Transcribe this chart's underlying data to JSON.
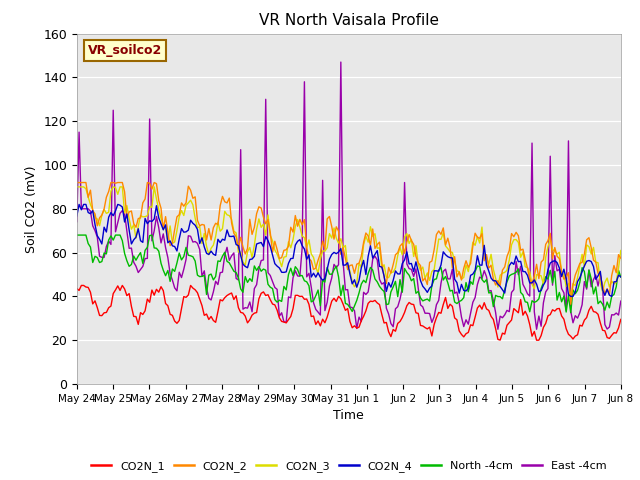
{
  "title": "VR North Vaisala Profile",
  "ylabel": "Soil CO2 (mV)",
  "xlabel": "Time",
  "annotation": "VR_soilco2",
  "ylim": [
    0,
    160
  ],
  "yticks": [
    0,
    20,
    40,
    60,
    80,
    100,
    120,
    140,
    160
  ],
  "x_labels": [
    "May 24",
    "May 25",
    "May 26",
    "May 27",
    "May 28",
    "May 29",
    "May 30",
    "May 31",
    "Jun 1",
    "Jun 2",
    "Jun 3",
    "Jun 4",
    "Jun 5",
    "Jun 6",
    "Jun 7",
    "Jun 8"
  ],
  "colors": {
    "CO2N_1": "#ff0000",
    "CO2N_2": "#ff8800",
    "CO2N_3": "#dddd00",
    "CO2N_4": "#0000cc",
    "North_4cm": "#00bb00",
    "East_4cm": "#9900aa"
  },
  "background_color": "#e8e8e8",
  "fig_width": 6.4,
  "fig_height": 4.8,
  "dpi": 100
}
